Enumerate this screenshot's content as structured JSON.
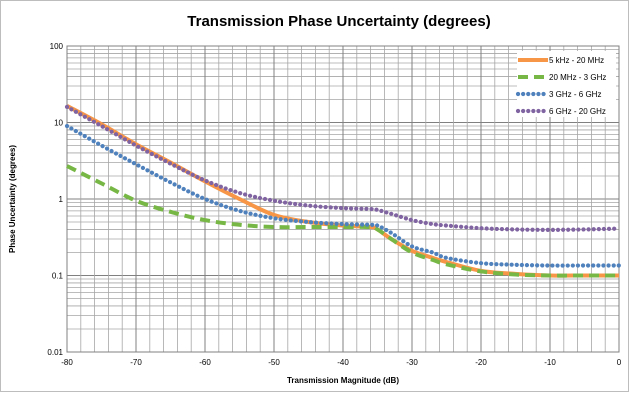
{
  "chart_data": {
    "type": "line",
    "title": "Transmission Phase Uncertainty (degrees)",
    "xlabel": "Transmission Magnitude (dB)",
    "ylabel": "Phase Uncertainty (degrees)",
    "xlim": [
      -80,
      0
    ],
    "ylim": [
      0.01,
      100
    ],
    "y_scale": "log",
    "grid": true,
    "legend_position": "top-right",
    "x_ticks": [
      "-80",
      "-70",
      "-60",
      "-50",
      "-40",
      "-30",
      "-20",
      "-10",
      "0"
    ],
    "y_ticks": [
      "100",
      "10",
      "1",
      "0.1",
      "0.01"
    ],
    "series": [
      {
        "name": "5 kHz - 20 MHz",
        "color": "#f79646",
        "dash": "solid",
        "x": [
          -80,
          -75,
          -70,
          -65,
          -60,
          -55,
          -50,
          -45,
          -40,
          -36,
          -35,
          -33,
          -30,
          -27,
          -25,
          -20,
          -15,
          -10,
          -5,
          0
        ],
        "y": [
          16.5,
          9.5,
          5.2,
          3.0,
          1.7,
          1.0,
          0.62,
          0.5,
          0.45,
          0.43,
          0.4,
          0.3,
          0.21,
          0.17,
          0.15,
          0.115,
          0.105,
          0.1,
          0.1,
          0.1
        ]
      },
      {
        "name": "20 MHz - 3 GHz",
        "color": "#77b746",
        "dash": "dash",
        "x": [
          -80,
          -75,
          -70,
          -65,
          -60,
          -55,
          -50,
          -45,
          -40,
          -36,
          -35,
          -33,
          -30,
          -27,
          -25,
          -20,
          -15,
          -10,
          -5,
          0
        ],
        "y": [
          2.7,
          1.6,
          0.95,
          0.68,
          0.53,
          0.46,
          0.43,
          0.43,
          0.43,
          0.43,
          0.4,
          0.3,
          0.2,
          0.16,
          0.14,
          0.113,
          0.103,
          0.1,
          0.1,
          0.1
        ]
      },
      {
        "name": "3 GHz - 6 GHz",
        "color": "#4f81bd",
        "dash": "dot",
        "x": [
          -80,
          -75,
          -70,
          -65,
          -60,
          -55,
          -50,
          -45,
          -40,
          -36,
          -35,
          -33,
          -30,
          -27,
          -25,
          -20,
          -15,
          -10,
          -5,
          0
        ],
        "y": [
          9.0,
          5.0,
          2.85,
          1.65,
          1.0,
          0.7,
          0.56,
          0.5,
          0.47,
          0.46,
          0.45,
          0.36,
          0.24,
          0.2,
          0.17,
          0.145,
          0.138,
          0.135,
          0.135,
          0.135
        ]
      },
      {
        "name": "6 GHz - 20 GHz",
        "color": "#8064a2",
        "dash": "dot",
        "x": [
          -80,
          -75,
          -70,
          -65,
          -60,
          -55,
          -50,
          -45,
          -40,
          -36,
          -35,
          -33,
          -30,
          -27,
          -25,
          -20,
          -15,
          -10,
          -5,
          0
        ],
        "y": [
          16.0,
          9.0,
          5.0,
          2.9,
          1.75,
          1.2,
          0.95,
          0.82,
          0.76,
          0.74,
          0.72,
          0.64,
          0.53,
          0.47,
          0.45,
          0.415,
          0.4,
          0.395,
          0.4,
          0.41
        ]
      }
    ]
  }
}
